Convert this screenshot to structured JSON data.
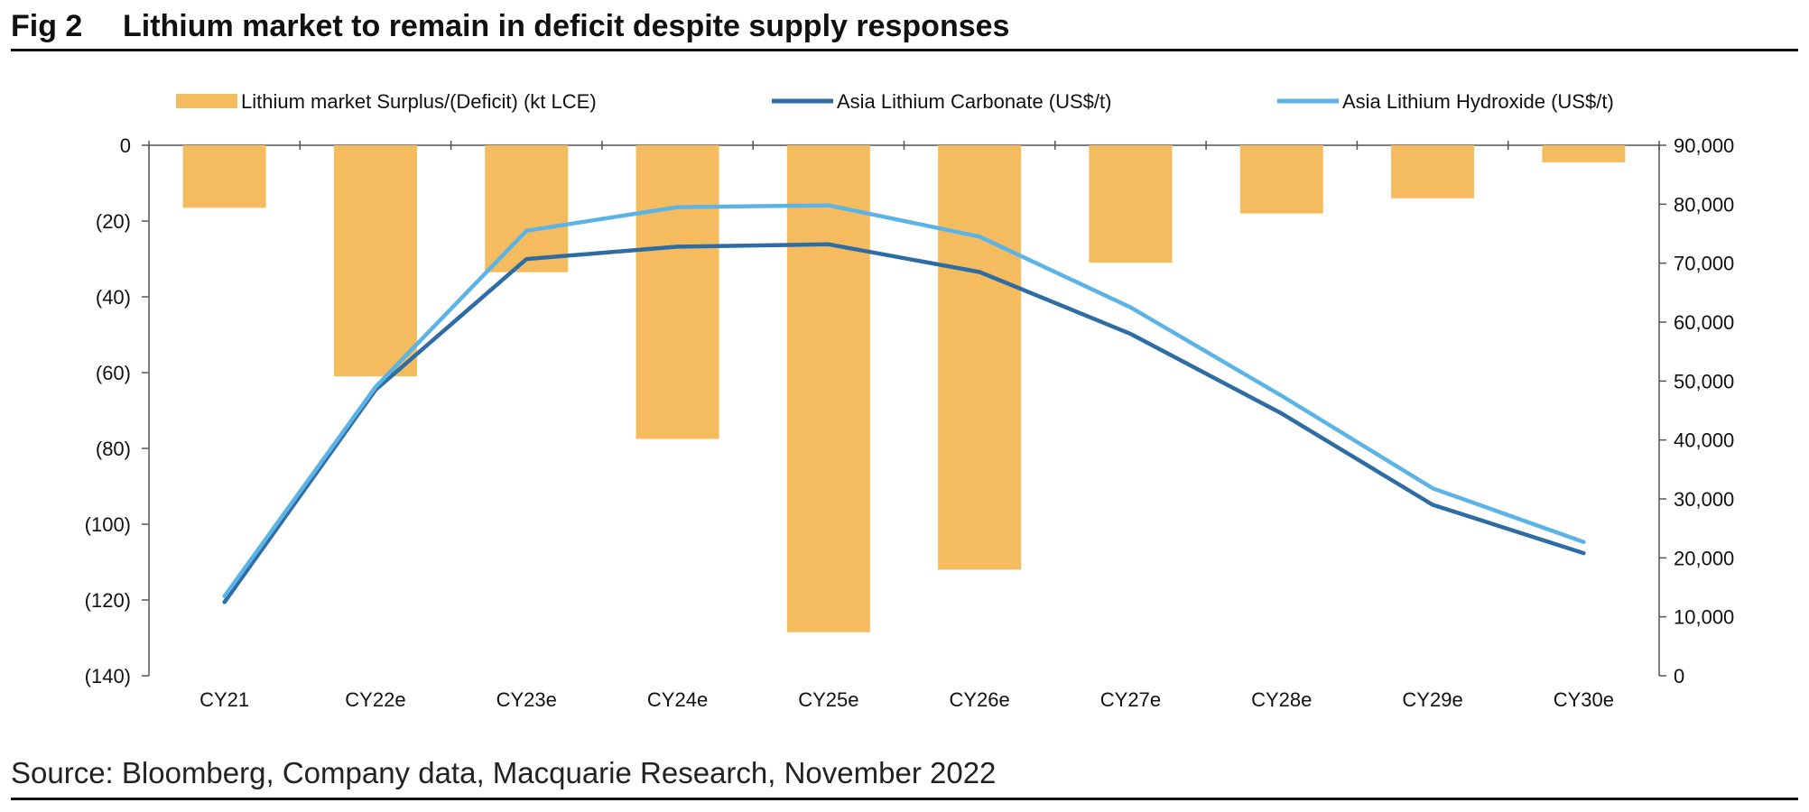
{
  "figure": {
    "label": "Fig 2",
    "title": "Lithium market to remain in deficit despite supply responses",
    "source": "Source: Bloomberg, Company data, Macquarie Research, November 2022"
  },
  "colors": {
    "bars": "#F4BC5E",
    "carbonate": "#2E6CA4",
    "hydroxide": "#5BB4E5",
    "axis": "#555555"
  },
  "chart_data": {
    "type": "bar+line",
    "categories": [
      "CY21",
      "CY22e",
      "CY23e",
      "CY24e",
      "CY25e",
      "CY26e",
      "CY27e",
      "CY28e",
      "CY29e",
      "CY30e"
    ],
    "left_axis": {
      "ylim": [
        -140,
        0
      ],
      "ticks": [
        0,
        -20,
        -40,
        -60,
        -80,
        -100,
        -120,
        -140
      ],
      "tick_labels": [
        "0",
        "(20)",
        "(40)",
        "(60)",
        "(80)",
        "(100)",
        "(120)",
        "(140)"
      ]
    },
    "right_axis": {
      "ylim": [
        0,
        90000
      ],
      "ticks": [
        90000,
        80000,
        70000,
        60000,
        50000,
        40000,
        30000,
        20000,
        10000,
        0
      ],
      "tick_labels": [
        "90,000",
        "80,000",
        "70,000",
        "60,000",
        "50,000",
        "40,000",
        "30,000",
        "20,000",
        "10,000",
        "0"
      ]
    },
    "series": [
      {
        "name": "Lithium market Surplus/(Deficit) (kt LCE)",
        "type": "bar",
        "axis": "left",
        "values": [
          -16.5,
          -61,
          -33.5,
          -77.5,
          -128.5,
          -112,
          -31,
          -18,
          -14,
          -4.5
        ]
      },
      {
        "name": "Asia Lithium Carbonate (US$/t)",
        "type": "line",
        "axis": "right",
        "values": [
          12500,
          48500,
          70700,
          72800,
          73200,
          68500,
          58000,
          44500,
          29000,
          20800
        ]
      },
      {
        "name": "Asia Lithium Hydroxide (US$/t)",
        "type": "line",
        "axis": "right",
        "values": [
          13500,
          49000,
          75500,
          79500,
          79800,
          74500,
          62500,
          47500,
          31800,
          22700
        ]
      }
    ],
    "legend": {
      "position": "top",
      "labels": [
        "Lithium market Surplus/(Deficit) (kt LCE)",
        "Asia Lithium Carbonate (US$/t)",
        "Asia Lithium Hydroxide (US$/t)"
      ]
    }
  }
}
